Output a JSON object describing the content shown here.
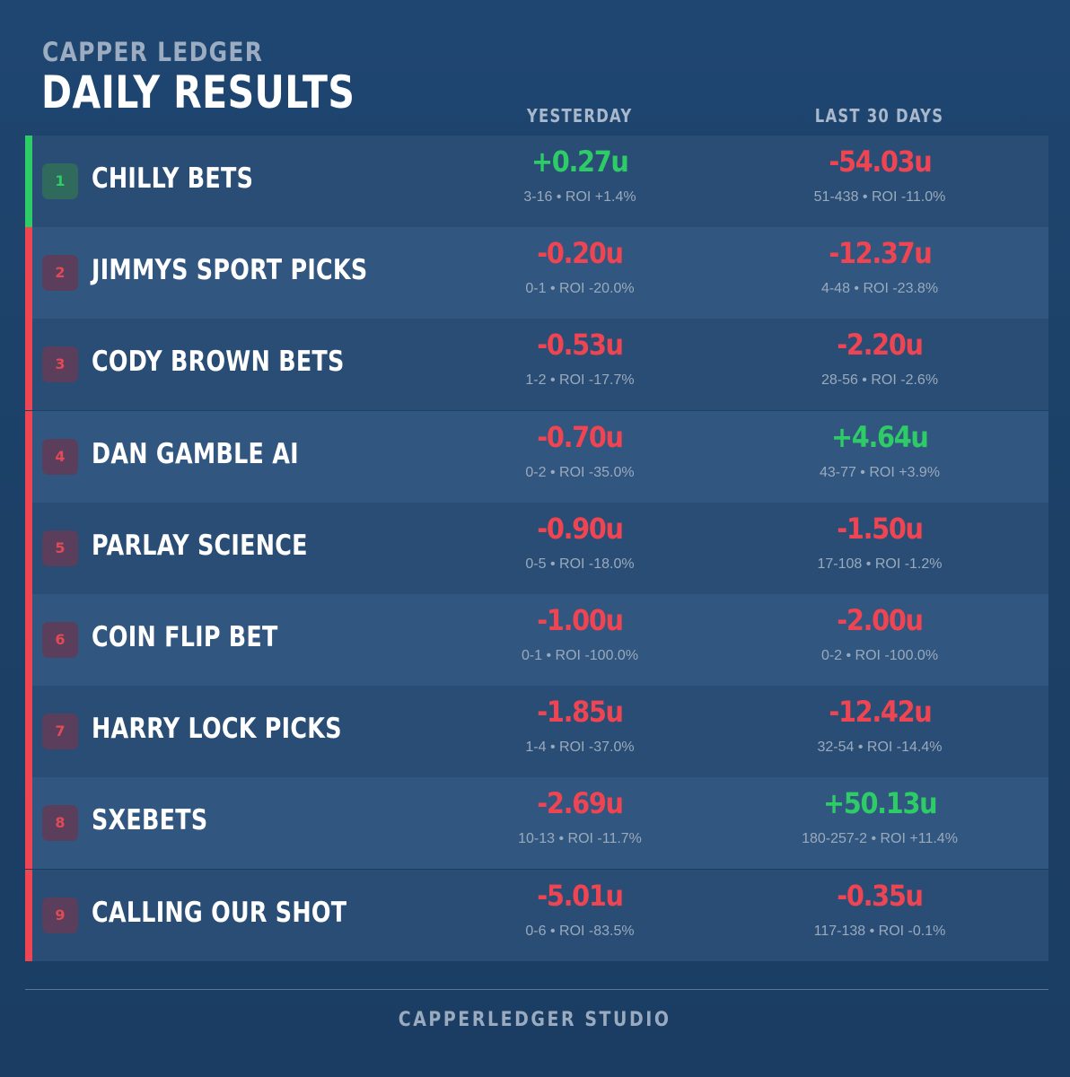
{
  "header": {
    "brand": "CAPPER LEDGER",
    "title": "DAILY RESULTS",
    "col_yesterday": "YESTERDAY",
    "col_last30": "LAST 30 DAYS"
  },
  "colors": {
    "positive": "#2ecc66",
    "negative": "#ef4452",
    "background": "#1d4169",
    "row": "#2a4d75",
    "row_alt": "#31567f"
  },
  "rows": [
    {
      "rank": "1",
      "name": "CHILLY BETS",
      "yesterday_units": "+0.27u",
      "yesterday_detail": "3-16 • ROI +1.4%",
      "last30_units": "-54.03u",
      "last30_detail": "51-438 • ROI -11.0%",
      "yesterday_positive": true,
      "last30_positive": false
    },
    {
      "rank": "2",
      "name": "JIMMYS SPORT PICKS",
      "yesterday_units": "-0.20u",
      "yesterday_detail": "0-1 • ROI -20.0%",
      "last30_units": "-12.37u",
      "last30_detail": "4-48 • ROI -23.8%",
      "yesterday_positive": false,
      "last30_positive": false
    },
    {
      "rank": "3",
      "name": "CODY BROWN BETS",
      "yesterday_units": "-0.53u",
      "yesterday_detail": "1-2 • ROI -17.7%",
      "last30_units": "-2.20u",
      "last30_detail": "28-56 • ROI -2.6%",
      "yesterday_positive": false,
      "last30_positive": false
    },
    {
      "rank": "4",
      "name": "DAN GAMBLE AI",
      "yesterday_units": "-0.70u",
      "yesterday_detail": "0-2 • ROI -35.0%",
      "last30_units": "+4.64u",
      "last30_detail": "43-77 • ROI +3.9%",
      "yesterday_positive": false,
      "last30_positive": true
    },
    {
      "rank": "5",
      "name": "PARLAY SCIENCE",
      "yesterday_units": "-0.90u",
      "yesterday_detail": "0-5 • ROI -18.0%",
      "last30_units": "-1.50u",
      "last30_detail": "17-108 • ROI -1.2%",
      "yesterday_positive": false,
      "last30_positive": false
    },
    {
      "rank": "6",
      "name": "COIN FLIP BET",
      "yesterday_units": "-1.00u",
      "yesterday_detail": "0-1 • ROI -100.0%",
      "last30_units": "-2.00u",
      "last30_detail": "0-2 • ROI -100.0%",
      "yesterday_positive": false,
      "last30_positive": false
    },
    {
      "rank": "7",
      "name": "HARRY LOCK PICKS",
      "yesterday_units": "-1.85u",
      "yesterday_detail": "1-4 • ROI -37.0%",
      "last30_units": "-12.42u",
      "last30_detail": "32-54 • ROI -14.4%",
      "yesterday_positive": false,
      "last30_positive": false
    },
    {
      "rank": "8",
      "name": "SXEBETS",
      "yesterday_units": "-2.69u",
      "yesterday_detail": "10-13 • ROI -11.7%",
      "last30_units": "+50.13u",
      "last30_detail": "180-257-2 • ROI +11.4%",
      "yesterday_positive": false,
      "last30_positive": true
    },
    {
      "rank": "9",
      "name": "CALLING OUR SHOT",
      "yesterday_units": "-5.01u",
      "yesterday_detail": "0-6 • ROI -83.5%",
      "last30_units": "-0.35u",
      "last30_detail": "117-138 • ROI -0.1%",
      "yesterday_positive": false,
      "last30_positive": false
    }
  ],
  "footer": {
    "text": "CAPPERLEDGER STUDIO"
  }
}
